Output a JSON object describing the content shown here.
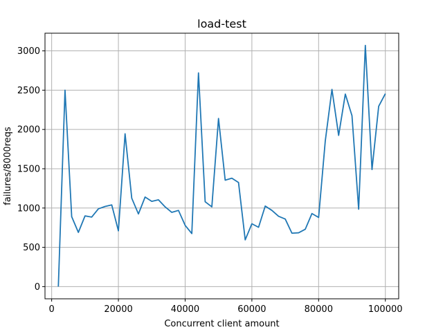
{
  "chart_data": {
    "type": "line",
    "title": "load-test",
    "xlabel": "Concurrent client amount",
    "ylabel": "failures/8000reqs",
    "xlim": [
      -2000,
      104000
    ],
    "ylim": [
      -155,
      3225
    ],
    "grid": true,
    "xticks": [
      0,
      20000,
      40000,
      60000,
      80000,
      100000
    ],
    "xtick_labels": [
      "0",
      "20000",
      "40000",
      "60000",
      "80000",
      "100000"
    ],
    "yticks": [
      0,
      500,
      1000,
      1500,
      2000,
      2500,
      3000
    ],
    "ytick_labels": [
      "0",
      "500",
      "1000",
      "1500",
      "2000",
      "2500",
      "3000"
    ],
    "series": [
      {
        "color": "#1f77b4",
        "x": [
          2000,
          4000,
          6000,
          8000,
          10000,
          12000,
          14000,
          16000,
          18000,
          20000,
          22000,
          24000,
          26000,
          28000,
          30000,
          32000,
          34000,
          36000,
          38000,
          40000,
          42000,
          44000,
          46000,
          48000,
          50000,
          52000,
          54000,
          56000,
          58000,
          60000,
          62000,
          64000,
          66000,
          68000,
          70000,
          72000,
          74000,
          76000,
          78000,
          80000,
          82000,
          84000,
          86000,
          88000,
          90000,
          92000,
          94000,
          96000,
          98000,
          100000
        ],
        "y": [
          0,
          2500,
          890,
          690,
          900,
          885,
          990,
          1020,
          1040,
          710,
          1945,
          1125,
          925,
          1140,
          1085,
          1105,
          1015,
          945,
          970,
          780,
          675,
          2720,
          1080,
          1015,
          2140,
          1355,
          1380,
          1325,
          595,
          800,
          755,
          1025,
          970,
          895,
          860,
          680,
          685,
          730,
          930,
          880,
          1855,
          2510,
          1925,
          2450,
          2175,
          985,
          3070,
          1490,
          2295,
          2455
        ]
      }
    ]
  }
}
